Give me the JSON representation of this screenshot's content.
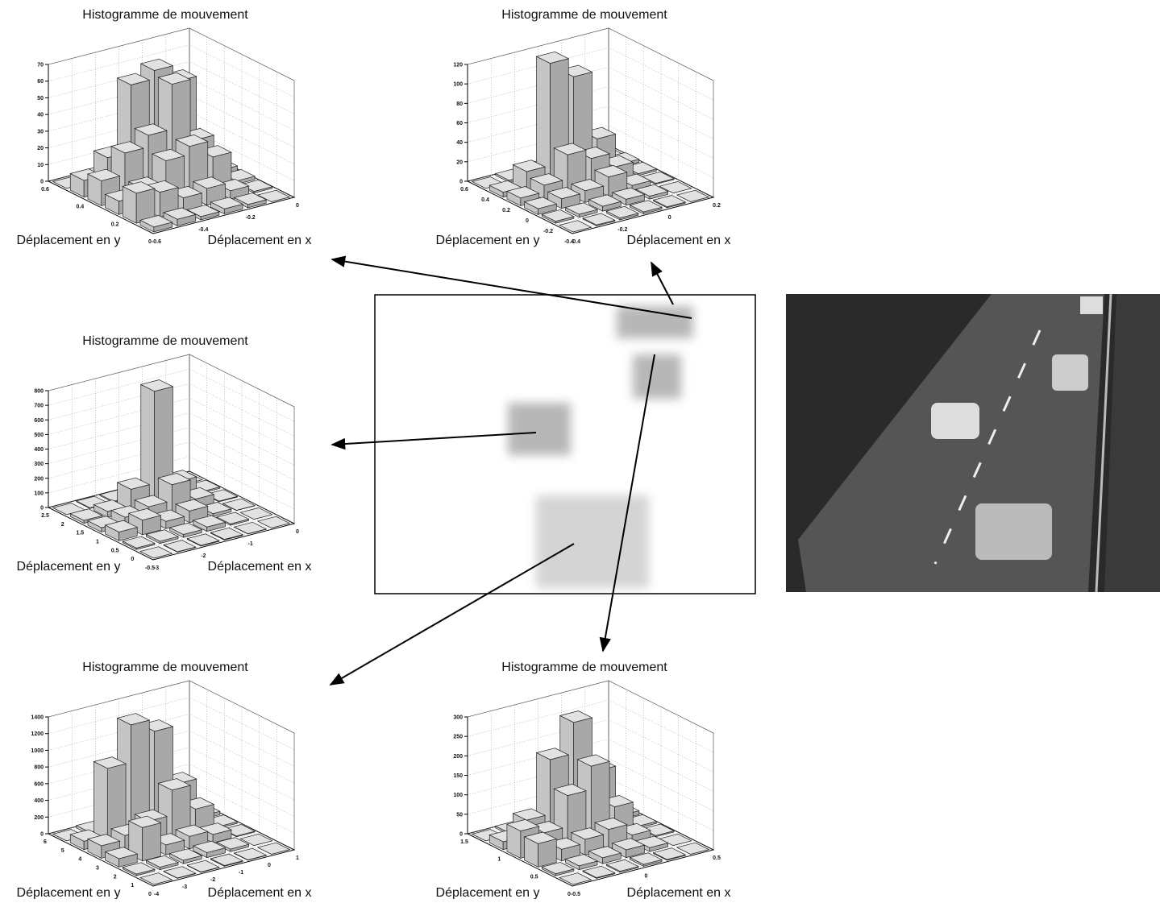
{
  "panels": [
    {
      "title": "Histogramme de mouvement",
      "y_label": "Déplacement en y",
      "x_label": "Déplacement en x",
      "zticks": [
        0,
        10,
        20,
        30,
        40,
        50,
        60,
        70
      ],
      "yticks": [
        0.6,
        0.4,
        0.2,
        0
      ],
      "xticks": [
        -0.6,
        -0.4,
        -0.2,
        0
      ],
      "counts": [
        [
          0,
          5,
          8,
          3,
          2,
          0
        ],
        [
          5,
          55,
          65,
          60,
          20,
          10
        ],
        [
          3,
          25,
          62,
          35,
          28,
          15
        ],
        [
          2,
          20,
          30,
          25,
          12,
          8
        ],
        [
          1,
          5,
          10,
          8,
          15,
          18
        ],
        [
          0,
          2,
          3,
          2,
          4,
          3
        ]
      ]
    },
    {
      "title": "Histogramme de mouvement",
      "y_label": "Déplacement en y",
      "x_label": "Déplacement en x",
      "zticks": [
        0,
        20,
        40,
        60,
        80,
        100,
        120
      ],
      "yticks": [
        0.6,
        0.4,
        0.2,
        0,
        -0.2,
        -0.4
      ],
      "xticks": [
        -0.4,
        -0.2,
        0,
        0.2
      ],
      "counts": [
        [
          0,
          2,
          3,
          4,
          2,
          0
        ],
        [
          3,
          35,
          105,
          125,
          20,
          5
        ],
        [
          2,
          15,
          30,
          40,
          15,
          8
        ],
        [
          1,
          5,
          20,
          12,
          10,
          6
        ],
        [
          0,
          3,
          6,
          5,
          3,
          2
        ],
        [
          0,
          1,
          2,
          2,
          1,
          0
        ]
      ]
    },
    {
      "title": "Histogramme de mouvement",
      "y_label": "Déplacement en y",
      "x_label": "Déplacement en x",
      "zticks": [
        0,
        100,
        200,
        300,
        400,
        500,
        600,
        700,
        800
      ],
      "yticks": [
        2.5,
        2,
        1.5,
        1,
        0.5,
        0,
        -0.5
      ],
      "xticks": [
        -3,
        -2,
        -1,
        0
      ],
      "counts": [
        [
          0,
          5,
          10,
          8,
          5,
          0
        ],
        [
          10,
          120,
          780,
          150,
          40,
          20
        ],
        [
          5,
          60,
          200,
          90,
          60,
          30
        ],
        [
          2,
          20,
          80,
          50,
          100,
          60
        ],
        [
          0,
          10,
          30,
          20,
          15,
          10
        ],
        [
          0,
          2,
          5,
          5,
          3,
          0
        ]
      ]
    },
    {
      "title": "Histogramme de mouvement",
      "y_label": "Déplacement en y",
      "x_label": "Déplacement en x",
      "zticks": [
        0,
        200,
        400,
        600,
        800,
        1000,
        1200,
        1400
      ],
      "yticks": [
        6,
        5,
        4,
        3,
        2,
        1,
        0
      ],
      "xticks": [
        -4,
        -3,
        -2,
        -1,
        0,
        1
      ],
      "counts": [
        [
          0,
          50,
          80,
          60,
          30,
          0
        ],
        [
          40,
          500,
          1200,
          1350,
          900,
          100
        ],
        [
          20,
          300,
          600,
          300,
          200,
          150
        ],
        [
          10,
          100,
          150,
          120,
          400,
          100
        ],
        [
          0,
          30,
          60,
          40,
          30,
          20
        ],
        [
          0,
          5,
          10,
          5,
          5,
          0
        ]
      ]
    },
    {
      "title": "Histogramme de mouvement",
      "y_label": "Déplacement en y",
      "x_label": "Déplacement en x",
      "zticks": [
        0,
        50,
        100,
        150,
        200,
        250,
        300
      ],
      "yticks": [
        1.5,
        1,
        0.5,
        0
      ],
      "xticks": [
        -0.5,
        0,
        0.5
      ],
      "counts": [
        [
          0,
          10,
          20,
          15,
          5,
          0
        ],
        [
          10,
          140,
          280,
          200,
          60,
          20
        ],
        [
          5,
          70,
          190,
          130,
          50,
          70
        ],
        [
          3,
          20,
          50,
          40,
          30,
          60
        ],
        [
          0,
          10,
          20,
          15,
          10,
          5
        ],
        [
          0,
          2,
          5,
          3,
          2,
          0
        ]
      ]
    }
  ]
}
